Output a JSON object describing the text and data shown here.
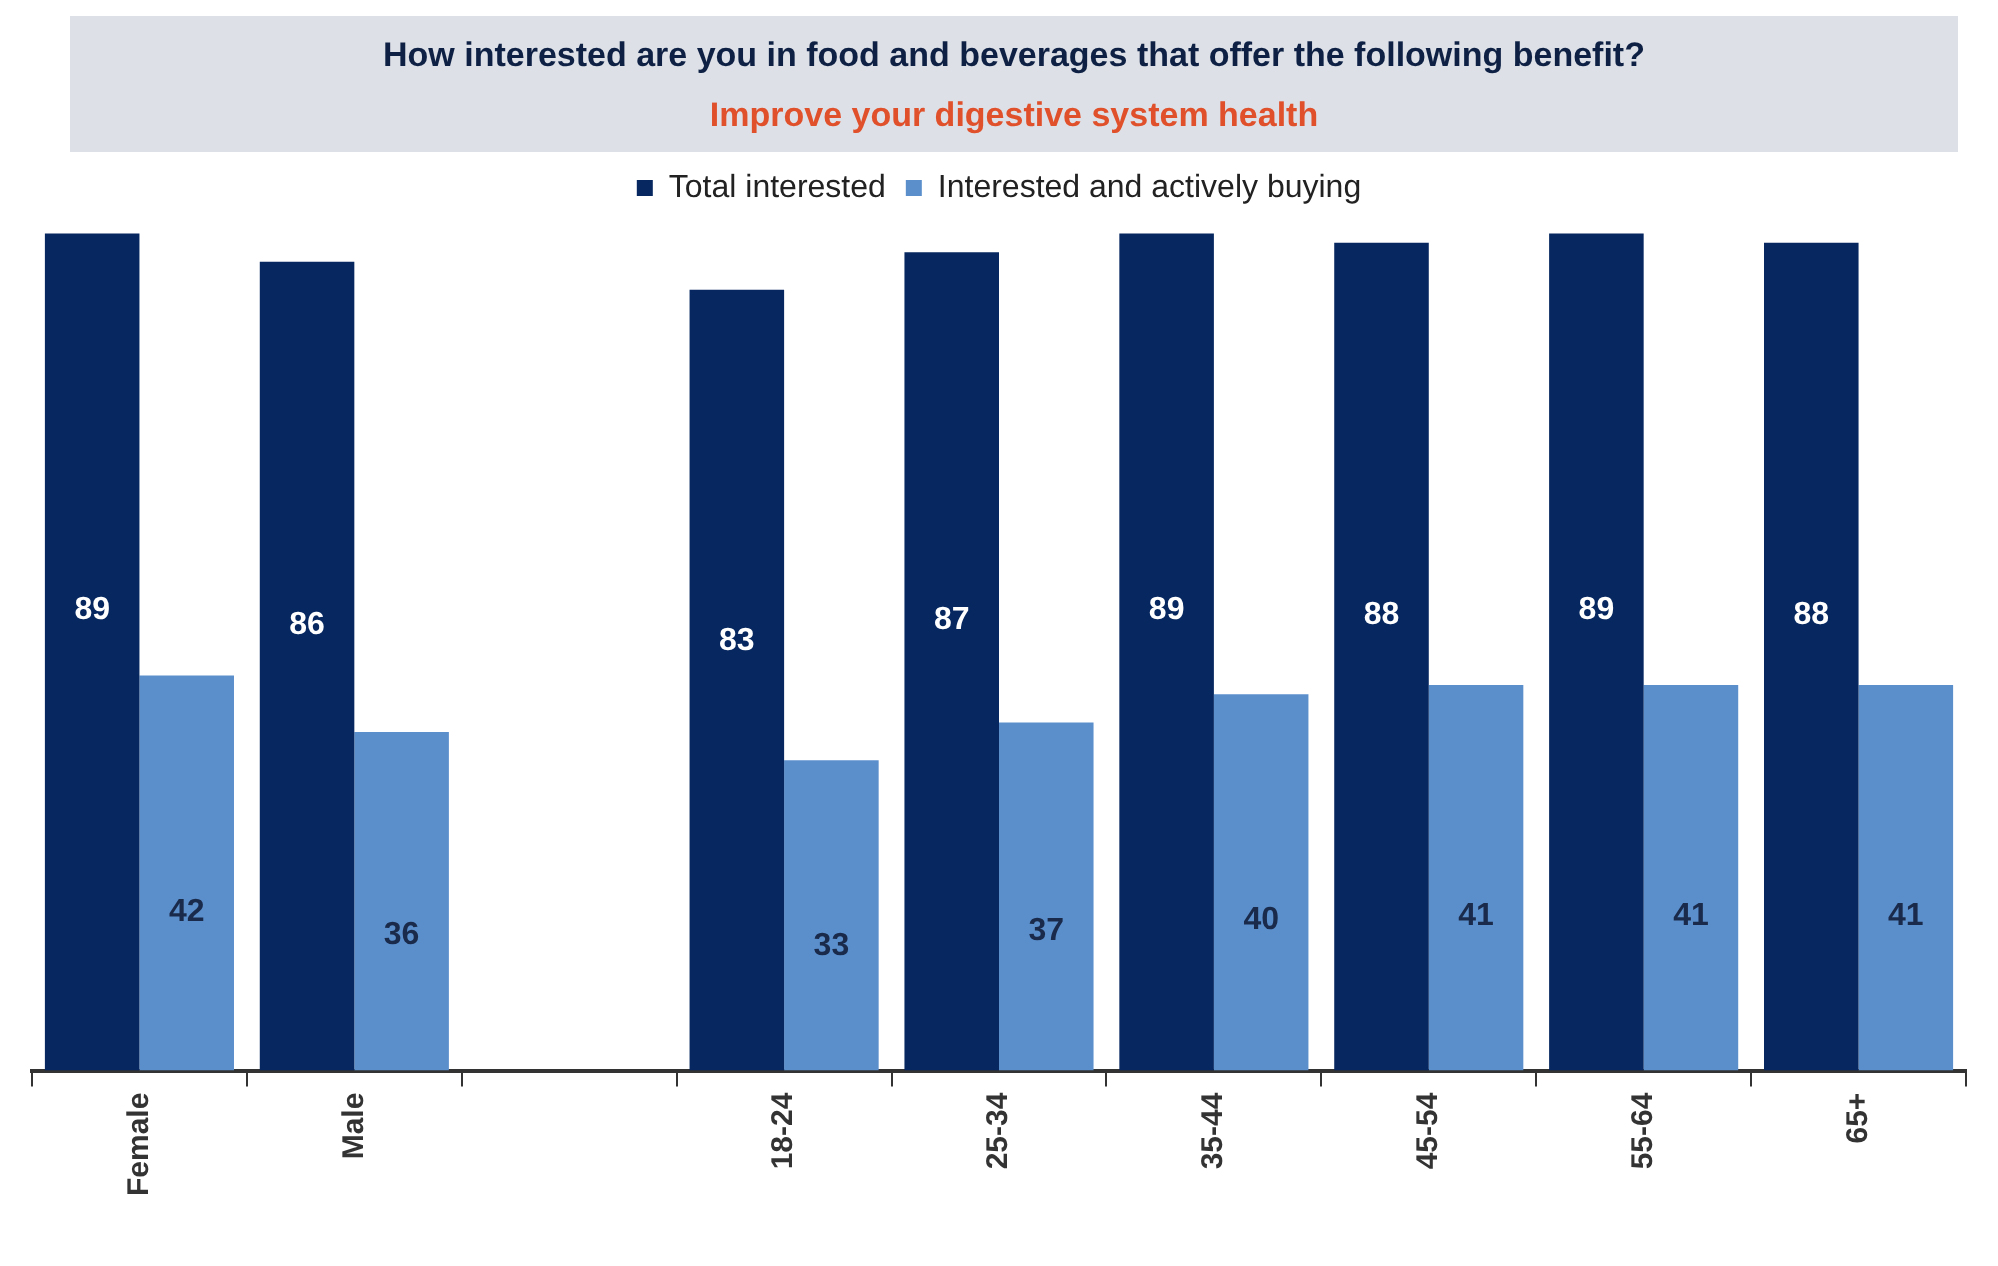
{
  "chart_data": {
    "type": "bar",
    "title": "How interested are you in food and beverages that offer the following benefit?",
    "subtitle": "Improve your digestive system health",
    "categories": [
      "Female",
      "Male",
      null,
      "18-24",
      "25-34",
      "35-44",
      "45-54",
      "55-64",
      "65+"
    ],
    "series": [
      {
        "name": "Total interested",
        "color": "#06275f",
        "values": [
          89,
          86,
          null,
          83,
          87,
          89,
          88,
          89,
          88
        ]
      },
      {
        "name": "Interested and actively buying",
        "color": "#5b8fcc",
        "values": [
          42,
          36,
          null,
          33,
          37,
          40,
          41,
          41,
          41
        ]
      }
    ],
    "data_labels": true,
    "legend": "top",
    "grid": false
  }
}
